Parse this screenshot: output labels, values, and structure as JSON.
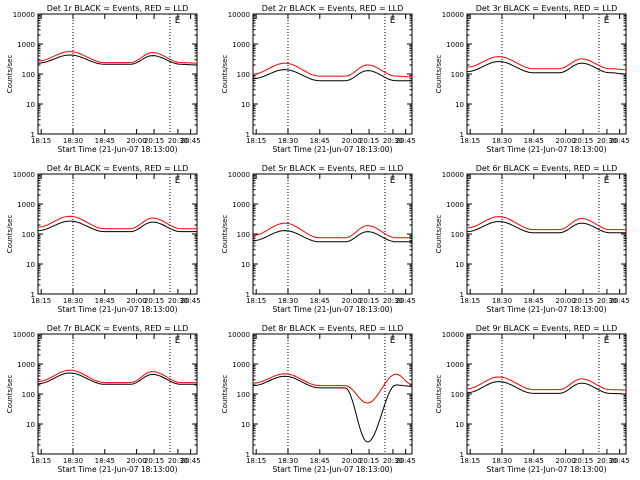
{
  "figure": {
    "title_suffix": "BLACK = Events, RED = LLD",
    "xlabel": "Start Time (21-Jun-07 18:13:00)",
    "ylabel": "Counts/sec"
  },
  "colors": {
    "events": "#000000",
    "lld": "#ff0000",
    "axis": "#000000"
  },
  "chart_data": [
    {
      "type": "line",
      "title": "Det 1r  BLACK = Events, RED = LLD",
      "xlabel": "Start Time (21-Jun-07 18:13:00)",
      "ylabel": "Counts/sec",
      "xticks": [
        "18:15",
        "18:30",
        "18:45",
        "20:00",
        "20:15",
        "20:30",
        "20:45"
      ],
      "yticks": [
        "1",
        "10",
        "100",
        "1000",
        "10000"
      ],
      "yscale": "log",
      "ylim": [
        1,
        10000
      ],
      "markers": [
        "18:30",
        "20:30"
      ],
      "corner_mark": "E",
      "series": [
        {
          "name": "Events",
          "values": [
            230,
            430,
            210,
            210,
            410,
            210,
            200
          ]
        },
        {
          "name": "LLD",
          "values": [
            270,
            560,
            240,
            240,
            520,
            240,
            230
          ]
        }
      ]
    },
    {
      "type": "line",
      "title": "Det 2r  BLACK = Events, RED = LLD",
      "xlabel": "Start Time (21-Jun-07 18:13:00)",
      "ylabel": "Counts/sec",
      "xticks": [
        "18:15",
        "18:30",
        "18:45",
        "20:00",
        "20:15",
        "20:30",
        "20:45"
      ],
      "yticks": [
        "1",
        "10",
        "100",
        "1000",
        "10000"
      ],
      "yscale": "log",
      "ylim": [
        1,
        10000
      ],
      "markers": [
        "18:30",
        "20:30"
      ],
      "corner_mark": "E",
      "series": [
        {
          "name": "Events",
          "values": [
            70,
            140,
            60,
            60,
            130,
            60,
            60
          ]
        },
        {
          "name": "LLD",
          "values": [
            100,
            230,
            85,
            85,
            200,
            85,
            80
          ]
        }
      ]
    },
    {
      "type": "line",
      "title": "Det 3r  BLACK = Events, RED = LLD",
      "xlabel": "Start Time (21-Jun-07 18:13:00)",
      "ylabel": "Counts/sec",
      "xticks": [
        "18:15",
        "18:30",
        "18:45",
        "20:00",
        "20:15",
        "20:30",
        "20:45"
      ],
      "yticks": [
        "1",
        "10",
        "100",
        "1000",
        "10000"
      ],
      "yscale": "log",
      "ylim": [
        1,
        10000
      ],
      "markers": [
        "18:30",
        "20:30"
      ],
      "corner_mark": "E",
      "series": [
        {
          "name": "Events",
          "values": [
            120,
            260,
            110,
            110,
            230,
            110,
            100
          ]
        },
        {
          "name": "LLD",
          "values": [
            170,
            380,
            150,
            150,
            320,
            150,
            140
          ]
        }
      ]
    },
    {
      "type": "line",
      "title": "Det 4r  BLACK = Events, RED = LLD",
      "xlabel": "Start Time (21-Jun-07 18:13:00)",
      "ylabel": "Counts/sec",
      "xticks": [
        "18:15",
        "18:30",
        "18:45",
        "20:00",
        "20:15",
        "20:30",
        "20:45"
      ],
      "yticks": [
        "1",
        "10",
        "100",
        "1000",
        "10000"
      ],
      "yscale": "log",
      "ylim": [
        1,
        10000
      ],
      "markers": [
        "18:30",
        "20:30"
      ],
      "corner_mark": "E",
      "series": [
        {
          "name": "Events",
          "values": [
            130,
            270,
            120,
            120,
            250,
            120,
            120
          ]
        },
        {
          "name": "LLD",
          "values": [
            170,
            390,
            150,
            150,
            340,
            150,
            150
          ]
        }
      ]
    },
    {
      "type": "line",
      "title": "Det 5r  BLACK = Events, RED = LLD",
      "xlabel": "Start Time (21-Jun-07 18:13:00)",
      "ylabel": "Counts/sec",
      "xticks": [
        "18:15",
        "18:30",
        "18:45",
        "20:00",
        "20:15",
        "20:30",
        "20:45"
      ],
      "yticks": [
        "1",
        "10",
        "100",
        "1000",
        "10000"
      ],
      "yscale": "log",
      "ylim": [
        1,
        10000
      ],
      "markers": [
        "18:30",
        "20:30"
      ],
      "corner_mark": "E",
      "series": [
        {
          "name": "Events",
          "values": [
            60,
            130,
            55,
            55,
            120,
            55,
            55
          ]
        },
        {
          "name": "LLD",
          "values": [
            90,
            230,
            75,
            75,
            190,
            75,
            75
          ]
        }
      ]
    },
    {
      "type": "line",
      "title": "Det 6r  BLACK = Events, RED = LLD",
      "xlabel": "Start Time (21-Jun-07 18:13:00)",
      "ylabel": "Counts/sec",
      "xticks": [
        "18:15",
        "18:30",
        "18:45",
        "20:00",
        "20:15",
        "20:30",
        "20:45"
      ],
      "yticks": [
        "1",
        "10",
        "100",
        "1000",
        "10000"
      ],
      "yscale": "log",
      "ylim": [
        1,
        10000
      ],
      "markers": [
        "18:30",
        "20:30"
      ],
      "corner_mark": "E",
      "series": [
        {
          "name": "Events",
          "values": [
            120,
            260,
            110,
            110,
            230,
            110,
            110
          ]
        },
        {
          "name": "LLD",
          "values": [
            160,
            380,
            140,
            140,
            330,
            140,
            140
          ]
        }
      ]
    },
    {
      "type": "line",
      "title": "Det 7r  BLACK = Events, RED = LLD",
      "xlabel": "Start Time (21-Jun-07 18:13:00)",
      "ylabel": "Counts/sec",
      "xticks": [
        "18:15",
        "18:30",
        "18:45",
        "20:00",
        "20:15",
        "20:30",
        "20:45"
      ],
      "yticks": [
        "1",
        "10",
        "100",
        "1000",
        "10000"
      ],
      "yscale": "log",
      "ylim": [
        1,
        10000
      ],
      "markers": [
        "18:30",
        "20:30"
      ],
      "corner_mark": "E",
      "series": [
        {
          "name": "Events",
          "values": [
            220,
            500,
            210,
            210,
            450,
            210,
            210
          ]
        },
        {
          "name": "LLD",
          "values": [
            260,
            620,
            240,
            240,
            560,
            240,
            240
          ]
        }
      ]
    },
    {
      "type": "line",
      "title": "Det 8r  BLACK = Events, RED = LLD",
      "xlabel": "Start Time (21-Jun-07 18:13:00)",
      "ylabel": "Counts/sec",
      "xticks": [
        "18:15",
        "18:30",
        "18:45",
        "20:00",
        "20:15",
        "20:30",
        "20:45"
      ],
      "yticks": [
        "1",
        "10",
        "100",
        "1000",
        "10000"
      ],
      "yscale": "log",
      "ylim": [
        1,
        10000
      ],
      "markers": [
        "18:30",
        "20:30"
      ],
      "corner_mark": "E",
      "series": [
        {
          "name": "Events",
          "values": [
            190,
            390,
            160,
            160,
            2.5,
            200,
            180
          ]
        },
        {
          "name": "LLD",
          "values": [
            230,
            470,
            190,
            190,
            50,
            460,
            210
          ]
        }
      ]
    },
    {
      "type": "line",
      "title": "Det 9r  BLACK = Events, RED = LLD",
      "xlabel": "Start Time (21-Jun-07 18:13:00)",
      "ylabel": "Counts/sec",
      "xticks": [
        "18:15",
        "18:30",
        "18:45",
        "20:00",
        "20:15",
        "20:30",
        "20:45"
      ],
      "yticks": [
        "1",
        "10",
        "100",
        "1000",
        "10000"
      ],
      "yscale": "log",
      "ylim": [
        1,
        10000
      ],
      "markers": [
        "18:30",
        "20:30"
      ],
      "corner_mark": "E",
      "series": [
        {
          "name": "Events",
          "values": [
            110,
            260,
            105,
            105,
            230,
            105,
            100
          ]
        },
        {
          "name": "LLD",
          "values": [
            150,
            370,
            140,
            140,
            320,
            140,
            135
          ]
        }
      ]
    }
  ]
}
